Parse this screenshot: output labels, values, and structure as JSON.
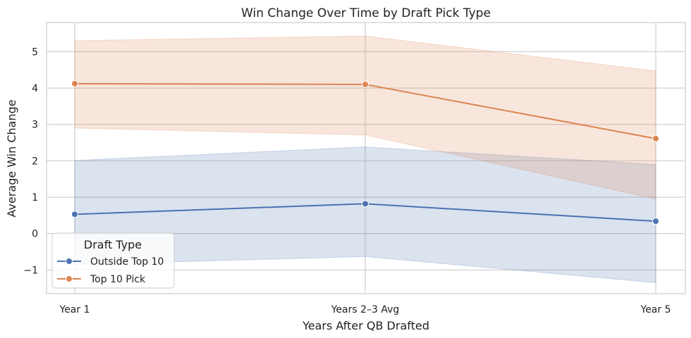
{
  "chart_data": {
    "type": "line",
    "title": "Win Change Over Time by Draft Pick Type",
    "xlabel": "Years After QB Drafted",
    "ylabel": "Average Win Change",
    "categories": [
      "Year 1",
      "Years 2–3 Avg",
      "Year 5"
    ],
    "ylim": [
      -1.65,
      5.8
    ],
    "yticks": [
      -1,
      0,
      1,
      2,
      3,
      4,
      5
    ],
    "ytick_labels": [
      "−1",
      "0",
      "1",
      "2",
      "3",
      "4",
      "5"
    ],
    "grid": true,
    "legend": {
      "title": "Draft Type",
      "placement": "lower-left"
    },
    "series": [
      {
        "name": "Outside Top 10",
        "color": "#4c72b0",
        "values": [
          0.53,
          0.82,
          0.34
        ],
        "ci_lower": [
          -0.85,
          -0.63,
          -1.35
        ],
        "ci_upper": [
          2.01,
          2.38,
          1.9
        ]
      },
      {
        "name": "Top 10 Pick",
        "color": "#dd8452",
        "values": [
          4.12,
          4.1,
          2.61
        ],
        "ci_lower": [
          2.9,
          2.71,
          0.95
        ],
        "ci_upper": [
          5.3,
          5.43,
          4.47
        ]
      }
    ]
  }
}
